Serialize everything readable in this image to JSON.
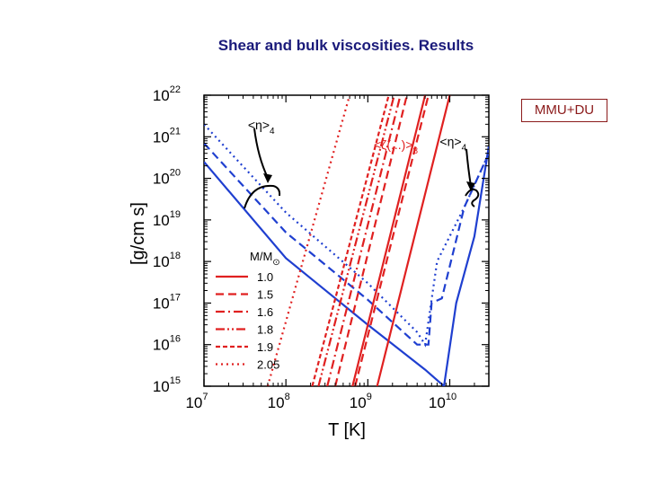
{
  "slide": {
    "title": "Shear and bulk viscosities. Results",
    "badge": "MMU+DU"
  },
  "colors": {
    "title": "#1a1a7a",
    "badge": "#8b1a1a",
    "shear": "#1f3fd0",
    "bulk": "#e02020",
    "axis": "#000000"
  },
  "chart_data": {
    "type": "line",
    "title": "",
    "xlabel": "T [K]",
    "ylabel": "[g/cm s]",
    "xscale": "log",
    "yscale": "log",
    "xlim": [
      10000000.0,
      30000000000.0
    ],
    "ylim": [
      1000000000000000.0,
      1e+22
    ],
    "x_ticks": [
      {
        "base": "10",
        "exp": "7",
        "value": 10000000.0
      },
      {
        "base": "10",
        "exp": "8",
        "value": 100000000.0
      },
      {
        "base": "10",
        "exp": "9",
        "value": 1000000000.0
      },
      {
        "base": "10",
        "exp": "10",
        "value": 10000000000.0
      }
    ],
    "y_ticks": [
      {
        "base": "10",
        "exp": "15",
        "value": 1000000000000000.0
      },
      {
        "base": "10",
        "exp": "16",
        "value": 1e+16
      },
      {
        "base": "10",
        "exp": "17",
        "value": 1e+17
      },
      {
        "base": "10",
        "exp": "18",
        "value": 1e+18
      },
      {
        "base": "10",
        "exp": "19",
        "value": 1e+19
      },
      {
        "base": "10",
        "exp": "20",
        "value": 1e+20
      },
      {
        "base": "10",
        "exp": "21",
        "value": 1e+21
      },
      {
        "base": "10",
        "exp": "22",
        "value": 1e+22
      }
    ],
    "legend": {
      "title": "M/M",
      "title_symbol": "⊙",
      "position": "lower-left",
      "entries": [
        {
          "label": "1.0",
          "style": "solid"
        },
        {
          "label": "1.5",
          "style": "dashed"
        },
        {
          "label": "1.6",
          "style": "dashdot"
        },
        {
          "label": "1.8",
          "style": "dashdotdot"
        },
        {
          "label": "1.9",
          "style": "shortdash"
        },
        {
          "label": "2.05",
          "style": "dotted"
        }
      ]
    },
    "annotations": [
      {
        "text": "<η>",
        "sub": "4",
        "color": "#000000",
        "at_x": 50000000.0,
        "at_y": 1.5e+21
      },
      {
        "text": "<ζ(...)>",
        "sub": "8",
        "color": "#e02020",
        "at_x": 2200000000.0,
        "at_y": 5e+20
      },
      {
        "text": "<η>",
        "sub": "4",
        "color": "#000000",
        "at_x": 11000000000.0,
        "at_y": 6e+20
      }
    ],
    "series": [
      {
        "group": "shear",
        "mass": "1.0",
        "style": "solid",
        "x": [
          10000000.0,
          100000000.0,
          1000000000.0,
          5000000000.0,
          8500000000.0,
          8500000000.0,
          12000000000.0,
          20000000000.0,
          30000000000.0
        ],
        "y": [
          2.5e+20,
          1.2e+18,
          3e+16,
          2500000000000000.0,
          1000000000000000.0,
          1000000000000000.0,
          1e+17,
          4e+18,
          6e+20
        ]
      },
      {
        "group": "shear",
        "mass": "1.5",
        "style": "dashed",
        "x": [
          10000000.0,
          100000000.0,
          1000000000.0,
          4000000000.0,
          5500000000.0,
          6000000000.0,
          8000000000.0,
          15000000000.0,
          30000000000.0
        ],
        "y": [
          7e+20,
          5e+18,
          1.2e+17,
          1e+16,
          1e+16,
          1e+17,
          1.3e+17,
          2e+19,
          4e+20
        ]
      },
      {
        "group": "shear",
        "mass": "2.05",
        "style": "dotted",
        "x": [
          10000000.0,
          100000000.0,
          1000000000.0,
          4000000000.0,
          5000000000.0,
          7000000000.0,
          15000000000.0,
          30000000000.0
        ],
        "y": [
          2e+21,
          1.5e+19,
          3e+17,
          2e+16,
          1e+16,
          1e+18,
          2e+19,
          4e+20
        ]
      },
      {
        "group": "bulk",
        "mass": "1.0",
        "style": "solid",
        "x": [
          1300000000.0,
          10000000000.0
        ],
        "y": [
          1000000000000000.0,
          1e+22
        ]
      },
      {
        "group": "bulk",
        "mass": "1.0",
        "style": "solid",
        "x": [
          650000000.0,
          5000000000.0
        ],
        "y": [
          1000000000000000.0,
          1e+22
        ]
      },
      {
        "group": "bulk",
        "mass": "1.5",
        "style": "dashed",
        "x": [
          400000000.0,
          3000000000.0
        ],
        "y": [
          1000000000000000.0,
          1e+22
        ]
      },
      {
        "group": "bulk",
        "mass": "1.5",
        "style": "dashed",
        "x": [
          700000000.0,
          5500000000.0
        ],
        "y": [
          1000000000000000.0,
          1e+22
        ]
      },
      {
        "group": "bulk",
        "mass": "1.6",
        "style": "dashdot",
        "x": [
          320000000.0,
          2500000000.0
        ],
        "y": [
          1000000000000000.0,
          1e+22
        ]
      },
      {
        "group": "bulk",
        "mass": "1.8",
        "style": "dashdotdot",
        "x": [
          250000000.0,
          2100000000.0
        ],
        "y": [
          1000000000000000.0,
          1e+22
        ]
      },
      {
        "group": "bulk",
        "mass": "1.9",
        "style": "shortdash",
        "x": [
          210000000.0,
          1800000000.0
        ],
        "y": [
          1000000000000000.0,
          1e+22
        ]
      },
      {
        "group": "bulk",
        "mass": "2.05",
        "style": "dotted",
        "x": [
          60000000.0,
          600000000.0
        ],
        "y": [
          1000000000000000.0,
          1e+22
        ]
      }
    ]
  }
}
